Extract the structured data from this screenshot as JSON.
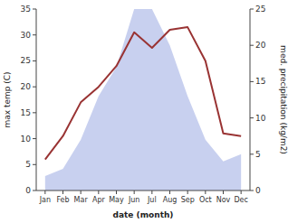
{
  "chart_data": {
    "type": "line",
    "categories": [
      "Jan",
      "Feb",
      "Mar",
      "Apr",
      "May",
      "Jun",
      "Jul",
      "Aug",
      "Sep",
      "Oct",
      "Nov",
      "Dec"
    ],
    "series": [
      {
        "type": "line",
        "color": "#993333",
        "values": [
          6,
          10.5,
          17,
          20,
          24,
          30.5,
          27.5,
          31,
          31.5,
          25,
          11,
          10.5
        ]
      },
      {
        "type": "area",
        "color": "#b0bce8",
        "axis": "y2",
        "values": [
          2,
          3,
          7,
          13,
          17,
          25,
          25,
          20,
          13,
          7,
          4,
          5
        ]
      }
    ],
    "xlabel": "date (month)",
    "ylabel": "max temp (C)",
    "y2label": "med. precipitation (kg/m2)",
    "ylim": [
      0,
      35
    ],
    "yticks": [
      0,
      5,
      10,
      15,
      20,
      25,
      30,
      35
    ],
    "y2lim": [
      0,
      25
    ],
    "y2ticks": [
      0,
      5,
      10,
      15,
      20,
      25
    ],
    "grid": false
  }
}
